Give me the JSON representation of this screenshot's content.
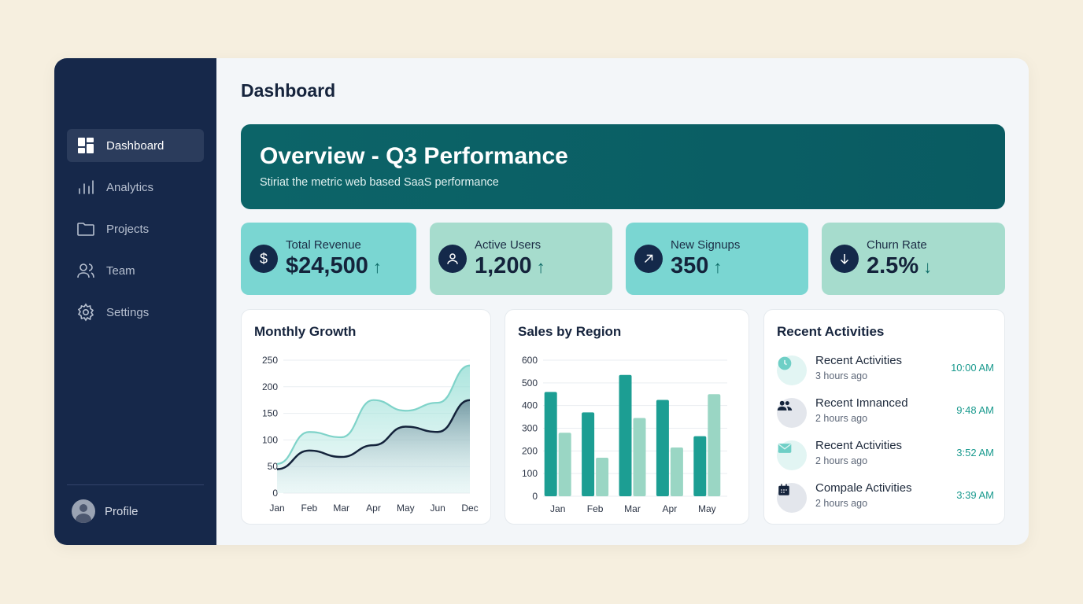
{
  "sidebar": {
    "items": [
      {
        "label": "Dashboard",
        "icon": "dashboard-icon",
        "active": true
      },
      {
        "label": "Analytics",
        "icon": "bar-chart-icon"
      },
      {
        "label": "Projects",
        "icon": "folder-icon"
      },
      {
        "label": "Team",
        "icon": "team-icon"
      },
      {
        "label": "Settings",
        "icon": "gear-icon"
      }
    ],
    "profile": "Profile"
  },
  "header": {
    "title": "Dashboard"
  },
  "banner": {
    "title": "Overview - Q3 Performance",
    "subtitle": "Stiriat the metric web based SaaS performance"
  },
  "kpis": [
    {
      "label": "Total Revenue",
      "value": "$24,500",
      "trend": "↑",
      "icon": "dollar-icon",
      "color": "#7ad6d2"
    },
    {
      "label": "Active Users",
      "value": "1,200",
      "trend": "↑",
      "icon": "user-icon",
      "color": "#a6dccd"
    },
    {
      "label": "New Signups",
      "value": "350",
      "trend": "↑",
      "icon": "arrow-up-right-icon",
      "color": "#7ad6d2"
    },
    {
      "label": "Churn Rate",
      "value": "2.5%",
      "trend": "↓",
      "icon": "arrow-down-icon",
      "color": "#a6dccd"
    }
  ],
  "chart_data": [
    {
      "type": "area",
      "title": "Monthly Growth",
      "categories": [
        "Jan",
        "Feb",
        "Mar",
        "Apr",
        "May",
        "Jun",
        "Dec"
      ],
      "ylim": [
        0,
        250
      ],
      "yticks": [
        0,
        50,
        100,
        150,
        200,
        250
      ],
      "grid": true,
      "series": [
        {
          "values": [
            55,
            115,
            105,
            175,
            155,
            170,
            240
          ],
          "color": "#7fd3c9"
        },
        {
          "values": [
            45,
            80,
            68,
            90,
            125,
            115,
            175
          ],
          "color": "#14233b"
        }
      ]
    },
    {
      "type": "bar",
      "title": "Sales by Region",
      "categories": [
        "Jan",
        "Feb",
        "Mar",
        "Apr",
        "May"
      ],
      "ylim": [
        0,
        600
      ],
      "yticks": [
        0,
        100,
        200,
        300,
        400,
        500,
        600
      ],
      "grid": true,
      "series": [
        {
          "values": [
            460,
            370,
            535,
            425,
            265
          ],
          "color": "#1c9e93"
        },
        {
          "values": [
            280,
            170,
            345,
            215,
            450
          ],
          "color": "#9ad6c4"
        }
      ]
    }
  ],
  "activities": {
    "title": "Recent Activities",
    "items": [
      {
        "title": "Recent Activities",
        "sub": "3 hours ago",
        "time": "10:00 AM",
        "icon": "clock-icon"
      },
      {
        "title": "Recent Imnanced",
        "sub": "2 hours ago",
        "time": "9:48 AM",
        "icon": "people-icon"
      },
      {
        "title": "Recent Activities",
        "sub": "2 hours ago",
        "time": "3:52 AM",
        "icon": "mail-icon"
      },
      {
        "title": "Compale Activities",
        "sub": "2 hours ago",
        "time": "3:39 AM",
        "icon": "calendar-icon"
      }
    ]
  }
}
